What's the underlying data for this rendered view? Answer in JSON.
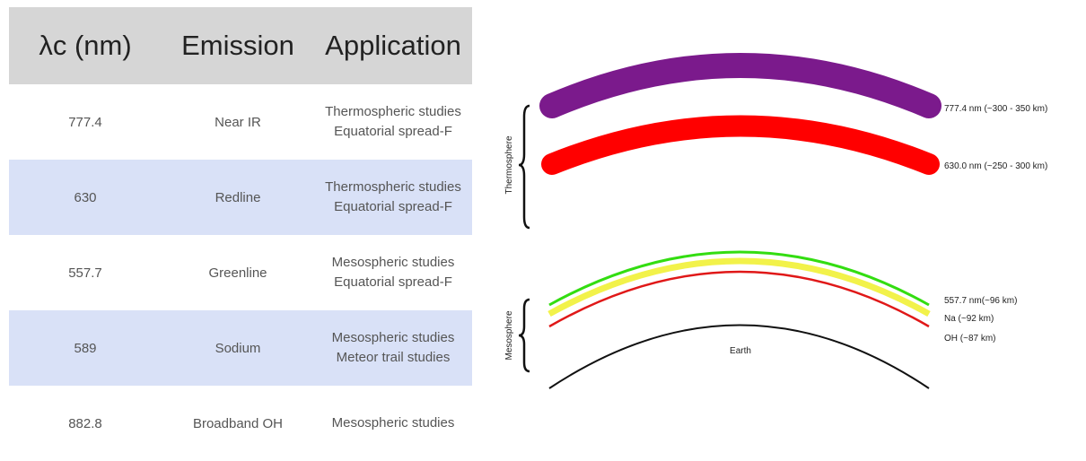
{
  "table": {
    "headers": [
      "λc (nm)",
      "Emission",
      "Application"
    ],
    "rows": [
      {
        "wavelength": "777.4",
        "emission": "Near IR",
        "application": [
          "Thermospheric studies",
          "Equatorial spread-F"
        ]
      },
      {
        "wavelength": "630",
        "emission": "Redline",
        "application": [
          "Thermospheric studies",
          "Equatorial spread-F"
        ]
      },
      {
        "wavelength": "557.7",
        "emission": "Greenline",
        "application": [
          "Mesospheric studies",
          "Equatorial spread-F"
        ]
      },
      {
        "wavelength": "589",
        "emission": "Sodium",
        "application": [
          "Mesospheric studies",
          "Meteor trail studies"
        ]
      },
      {
        "wavelength": "882.8",
        "emission": "Broadband OH",
        "application": [
          "Mesospheric studies"
        ]
      }
    ]
  },
  "diagram": {
    "thermosphere_label": "Thermosphere",
    "mesosphere_label": "Mesosphere",
    "earth_label": "Earth",
    "layers": {
      "near_ir": {
        "label": "777.4 nm (~300 - 350 km)",
        "color": "#7b1a8c"
      },
      "redline": {
        "label": "630.0 nm (~250 - 300 km)",
        "color": "#ff0000"
      },
      "greenline": {
        "label": "557.7 nm(~96 km)",
        "color": "#33dd11"
      },
      "sodium": {
        "label": "Na (~92 km)",
        "color": "#f2f24a"
      },
      "oh": {
        "label": "OH (~87 km)",
        "color": "#e01818"
      }
    }
  }
}
